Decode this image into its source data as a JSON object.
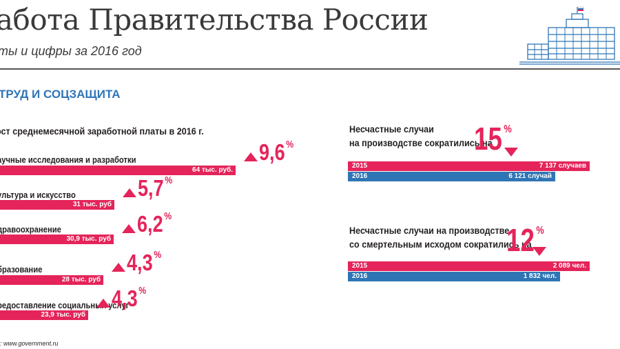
{
  "header": {
    "title": "абота Правительства России",
    "subtitle": "ты и цифры за 2016 год"
  },
  "section": {
    "title": "ТРУД И СОЦЗАЩИТА"
  },
  "colors": {
    "accent": "#e4245a",
    "blue": "#2e75b6"
  },
  "chart_data": [
    {
      "type": "bar",
      "title": "ост среднемесячной заработной платы в 2016 г.",
      "categories": [
        "аучные исследования и разработки",
        "ультура и искусство",
        "дравоохранение",
        "бразование",
        "редоставление социальных услуг"
      ],
      "values": [
        64,
        31,
        30.9,
        28,
        23.9
      ],
      "value_labels": [
        "64 тыс. руб.",
        "31 тыс. руб",
        "30,9 тыс. руб",
        "28 тыс. руб",
        "23,9 тыс. руб"
      ],
      "growth_labels": [
        "9,6",
        "5,7",
        "6,2",
        "4,3",
        "4,3"
      ],
      "growth_values": [
        9.6,
        5.7,
        6.2,
        4.3,
        4.3
      ],
      "growth_unit": "%"
    },
    {
      "type": "bar",
      "text_line1": "Несчастные случаи",
      "text_line2": "на производстве сократились на",
      "change_label": "15",
      "change_unit": "%",
      "categories": [
        "2015",
        "2016"
      ],
      "values": [
        7137,
        6121
      ],
      "value_labels": [
        "7 137 случаев",
        "6 121 случай"
      ],
      "colors": [
        "#e4245a",
        "#2e75b6"
      ]
    },
    {
      "type": "bar",
      "text_line1": "Несчастные случаи на производстве",
      "text_line2": "со смертельным исходом сократились на",
      "change_label": "12",
      "change_unit": "%",
      "categories": [
        "2015",
        "2016"
      ],
      "values": [
        2089,
        1832
      ],
      "value_labels": [
        "2 089 чел.",
        "1 832 чел."
      ],
      "colors": [
        "#e4245a",
        "#2e75b6"
      ]
    }
  ],
  "footer": {
    "source": ": www.government.ru"
  }
}
